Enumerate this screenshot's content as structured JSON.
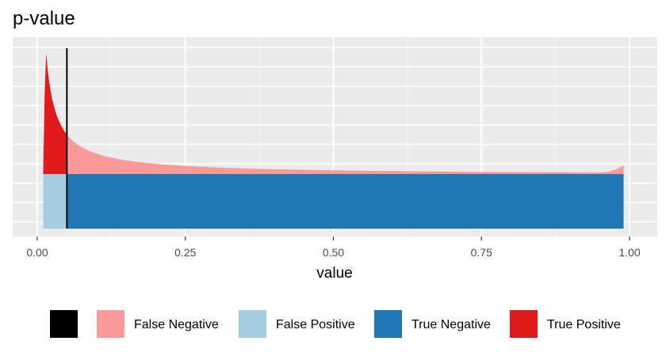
{
  "chart_data": {
    "type": "area",
    "title": "p-value",
    "xlabel": "value",
    "ylabel": "",
    "xlim": [
      0,
      1
    ],
    "x_ticks": [
      "0.00",
      "0.25",
      "0.50",
      "0.75",
      "1.00"
    ],
    "y_ticks_labeled": false,
    "grid": true,
    "legend_position": "bottom",
    "threshold": 0.05,
    "threshold_color": "#000000",
    "value_range": [
      0.01,
      0.99
    ],
    "components": {
      "negative_level": 0.23,
      "negative_peak_near_one": 0.26,
      "positive_peak": 0.74,
      "positive_peak_at": 0.015,
      "max_y": 0.76
    },
    "legend": [
      {
        "key": "threshold",
        "label": "",
        "color": "#000000"
      },
      {
        "key": "false_negative",
        "label": "False Negative",
        "color": "#FB9A99"
      },
      {
        "key": "false_positive",
        "label": "False Positive",
        "color": "#A6CEE3"
      },
      {
        "key": "true_negative",
        "label": "True Negative",
        "color": "#1F78B4"
      },
      {
        "key": "true_positive",
        "label": "True Positive",
        "color": "#E31A1C"
      }
    ]
  }
}
